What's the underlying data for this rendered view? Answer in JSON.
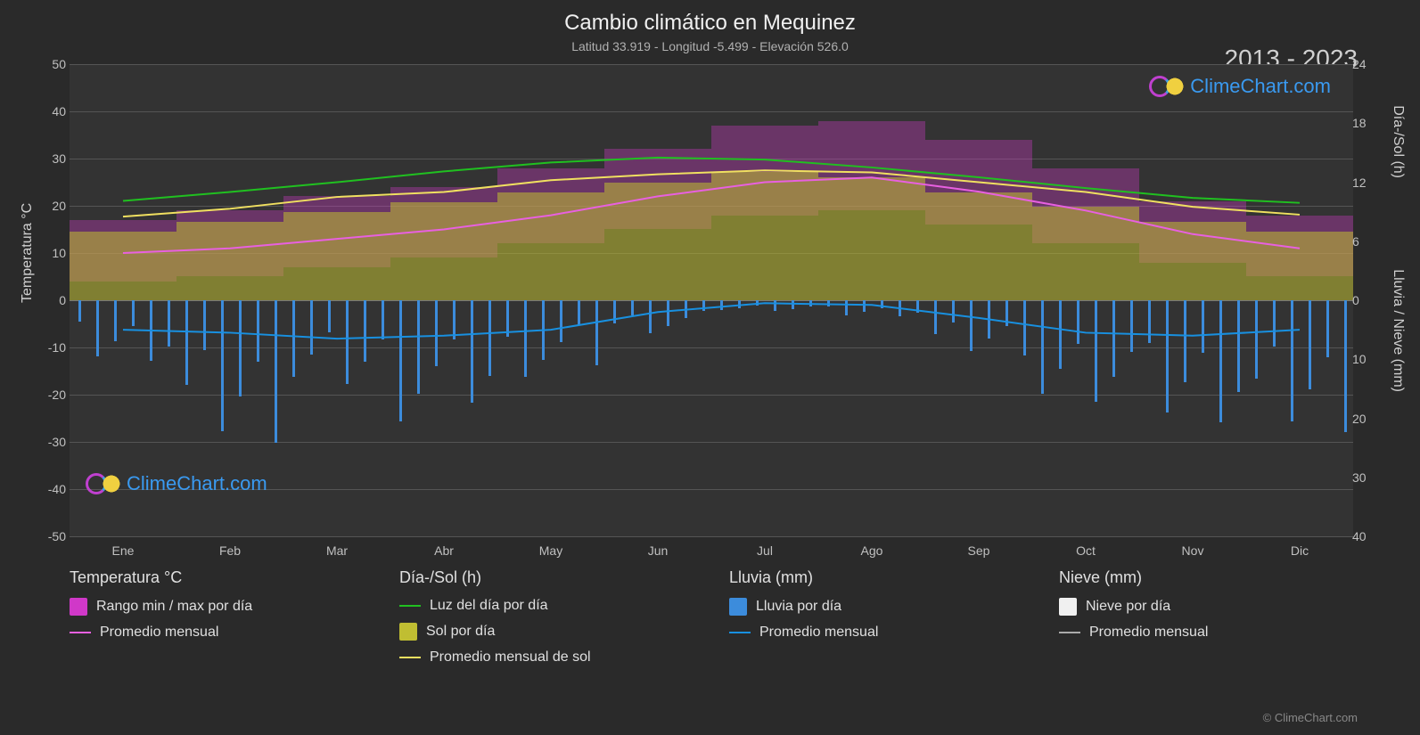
{
  "title": "Cambio climático en Mequinez",
  "subtitle": "Latitud 33.919 - Longitud -5.499 - Elevación 526.0",
  "year_range": "2013 - 2023",
  "brand": "ClimeChart.com",
  "copyright": "© ClimeChart.com",
  "axes": {
    "left_label": "Temperatura °C",
    "right_label_top": "Día-/Sol (h)",
    "right_label_bottom": "Lluvia / Nieve (mm)",
    "left_ticks": [
      50,
      40,
      30,
      20,
      10,
      0,
      -10,
      -20,
      -30,
      -40,
      -50
    ],
    "right_ticks_top": [
      24,
      18,
      12,
      6,
      0
    ],
    "right_ticks_bottom": [
      0,
      10,
      20,
      30,
      40
    ],
    "temp_range": [
      -50,
      50
    ],
    "sun_range_hours": [
      0,
      24
    ],
    "rain_range_mm": [
      0,
      40
    ],
    "zero_at_pct": 50
  },
  "months": [
    "Ene",
    "Feb",
    "Mar",
    "Abr",
    "May",
    "Jun",
    "Jul",
    "Ago",
    "Sep",
    "Oct",
    "Nov",
    "Dic"
  ],
  "colors": {
    "background": "#2a2a2a",
    "plot_bg": "#333333",
    "grid": "#555555",
    "temp_range_fill": "#d038c8",
    "temp_avg_line": "#e860e0",
    "daylight_line": "#20c020",
    "sun_fill": "#c0be32",
    "sun_avg_line": "#f0e060",
    "rain_fill": "#3c8cdc",
    "rain_avg_line": "#1890e0",
    "snow_fill": "#f0f0f0",
    "snow_avg_line": "#aaaaaa",
    "text": "#e0e0e0",
    "brand_blue": "#3a9af0",
    "brand_magenta": "#c040d0"
  },
  "series": {
    "temp_avg_c": [
      10,
      11,
      13,
      15,
      18,
      22,
      25,
      26,
      23,
      19,
      14,
      11
    ],
    "temp_min_c": [
      4,
      5,
      7,
      9,
      12,
      15,
      18,
      19,
      16,
      12,
      8,
      5
    ],
    "temp_max_c": [
      17,
      19,
      22,
      24,
      28,
      32,
      37,
      38,
      34,
      28,
      21,
      18
    ],
    "daylight_h": [
      10.1,
      11.0,
      12.0,
      13.1,
      14.0,
      14.5,
      14.3,
      13.5,
      12.5,
      11.4,
      10.4,
      9.9
    ],
    "sunshine_h": [
      7,
      8,
      9,
      10,
      11,
      12,
      13,
      12.5,
      11,
      9.5,
      8,
      7
    ],
    "sun_avg_line_h": [
      8.5,
      9.3,
      10.5,
      11.0,
      12.2,
      12.8,
      13.2,
      13.0,
      12.0,
      11.0,
      9.5,
      8.7
    ],
    "rain_avg_mm": [
      5,
      5.5,
      6.5,
      6,
      5,
      2,
      0.5,
      0.8,
      3,
      5.5,
      6,
      5
    ],
    "rain_spikes_mm": [
      12,
      28,
      18,
      22,
      14,
      6,
      2,
      3,
      10,
      20,
      24,
      26
    ]
  },
  "legend": {
    "temp": {
      "heading": "Temperatura °C",
      "range_label": "Rango min / max por día",
      "avg_label": "Promedio mensual"
    },
    "sun": {
      "heading": "Día-/Sol (h)",
      "daylight_label": "Luz del día por día",
      "sun_label": "Sol por día",
      "sun_avg_label": "Promedio mensual de sol"
    },
    "rain": {
      "heading": "Lluvia (mm)",
      "rain_label": "Lluvia por día",
      "rain_avg_label": "Promedio mensual"
    },
    "snow": {
      "heading": "Nieve (mm)",
      "snow_label": "Nieve por día",
      "snow_avg_label": "Promedio mensual"
    }
  }
}
